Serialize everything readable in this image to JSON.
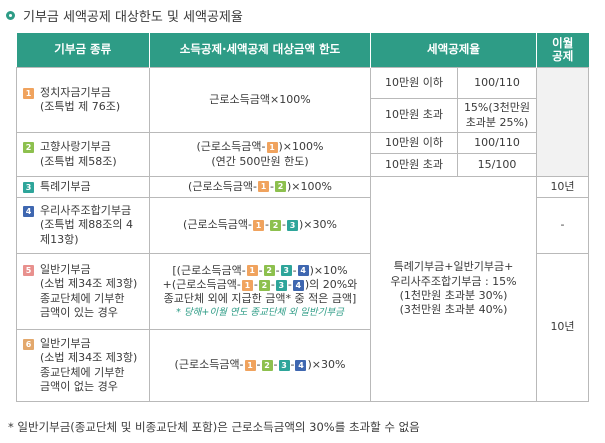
{
  "title": "기부금 세액공제 대상한도 및 세액공제율",
  "headers": {
    "type": "기부금 종류",
    "limit": "소득공제·세액공제 대상금액 한도",
    "rate": "세액공제율",
    "carry_line1": "이월",
    "carry_line2": "공제"
  },
  "rows": {
    "r1": {
      "badge": "1",
      "name1": "정치자금기부금",
      "name2": "(조특법 제 76조)",
      "limit": "근로소득금액×100%",
      "tier1_label": "10만원 이하",
      "tier1_rate": "100/110",
      "tier2_label": "10만원 초과",
      "tier2_rate_line1": "15%(3천만원",
      "tier2_rate_line2": "초과분 25%)"
    },
    "r2": {
      "badge": "2",
      "name1": "고향사랑기부금",
      "name2": "(조특법 제58조)",
      "limit_line1_pre": "(근로소득금액-",
      "limit_line1_post": ")×100%",
      "limit_line2": "(연간 500만원 한도)",
      "tier1_label": "10만원 이하",
      "tier1_rate": "100/110",
      "tier2_label": "10만원 초과",
      "tier2_rate": "15/100"
    },
    "r3": {
      "badge": "3",
      "name1": "특례기부금",
      "limit_pre": "(근로소득금액-",
      "limit_post": ")×100%",
      "carry": "10년"
    },
    "r4": {
      "badge": "4",
      "name1": "우리사주조합기부금",
      "name2": "(조특법 제88조의 4",
      "name3": "제13항)",
      "limit_pre": "(근로소득금액-",
      "limit_post": ")×30%",
      "carry": "-"
    },
    "r5": {
      "badge": "5",
      "name1": "일반기부금",
      "name2": "(소법 제34조 제3항)",
      "name3": "종교단체에 기부한",
      "name4": "금액이 있는 경우",
      "limit_line1_pre": "[(근로소득금액-",
      "limit_line1_post": ")×10%",
      "limit_line2_pre": "+(근로소득금액-",
      "limit_line2_post": ")의 20%와",
      "limit_line3": "종교단체 외에 지급한 금액* 중 적은 금액]",
      "limit_note": "* 당해+이월 연도 종교단체 외 일반기부금"
    },
    "r6": {
      "badge": "6",
      "name1": "일반기부금",
      "name2": "(소법 제34조 제3항)",
      "name3": "종교단체에 기부한",
      "name4": "금액이 없는 경우",
      "limit_pre": "(근로소득금액-",
      "limit_post": ")×30%",
      "carry": "10년"
    },
    "merged_rate": {
      "line1": "특례기부금+일반기부금+",
      "line2": "우리사주조합기부금 : 15%",
      "line3": "(1천만원 초과분 30%)",
      "line4": "(3천만원 초과분 40%)"
    }
  },
  "badges": {
    "n1": "1",
    "n2": "2",
    "n3": "3",
    "n4": "4"
  },
  "footnote": "* 일반기부금(종교단체 및 비종교단체 포함)은 근로소득금액의 30%를 초과할 수 없음",
  "colors": {
    "header_bg": "#2e9c86",
    "badge1": "#f0a35e",
    "badge2": "#8dc04e",
    "badge3": "#2ea59a",
    "badge4": "#3f67b0"
  }
}
